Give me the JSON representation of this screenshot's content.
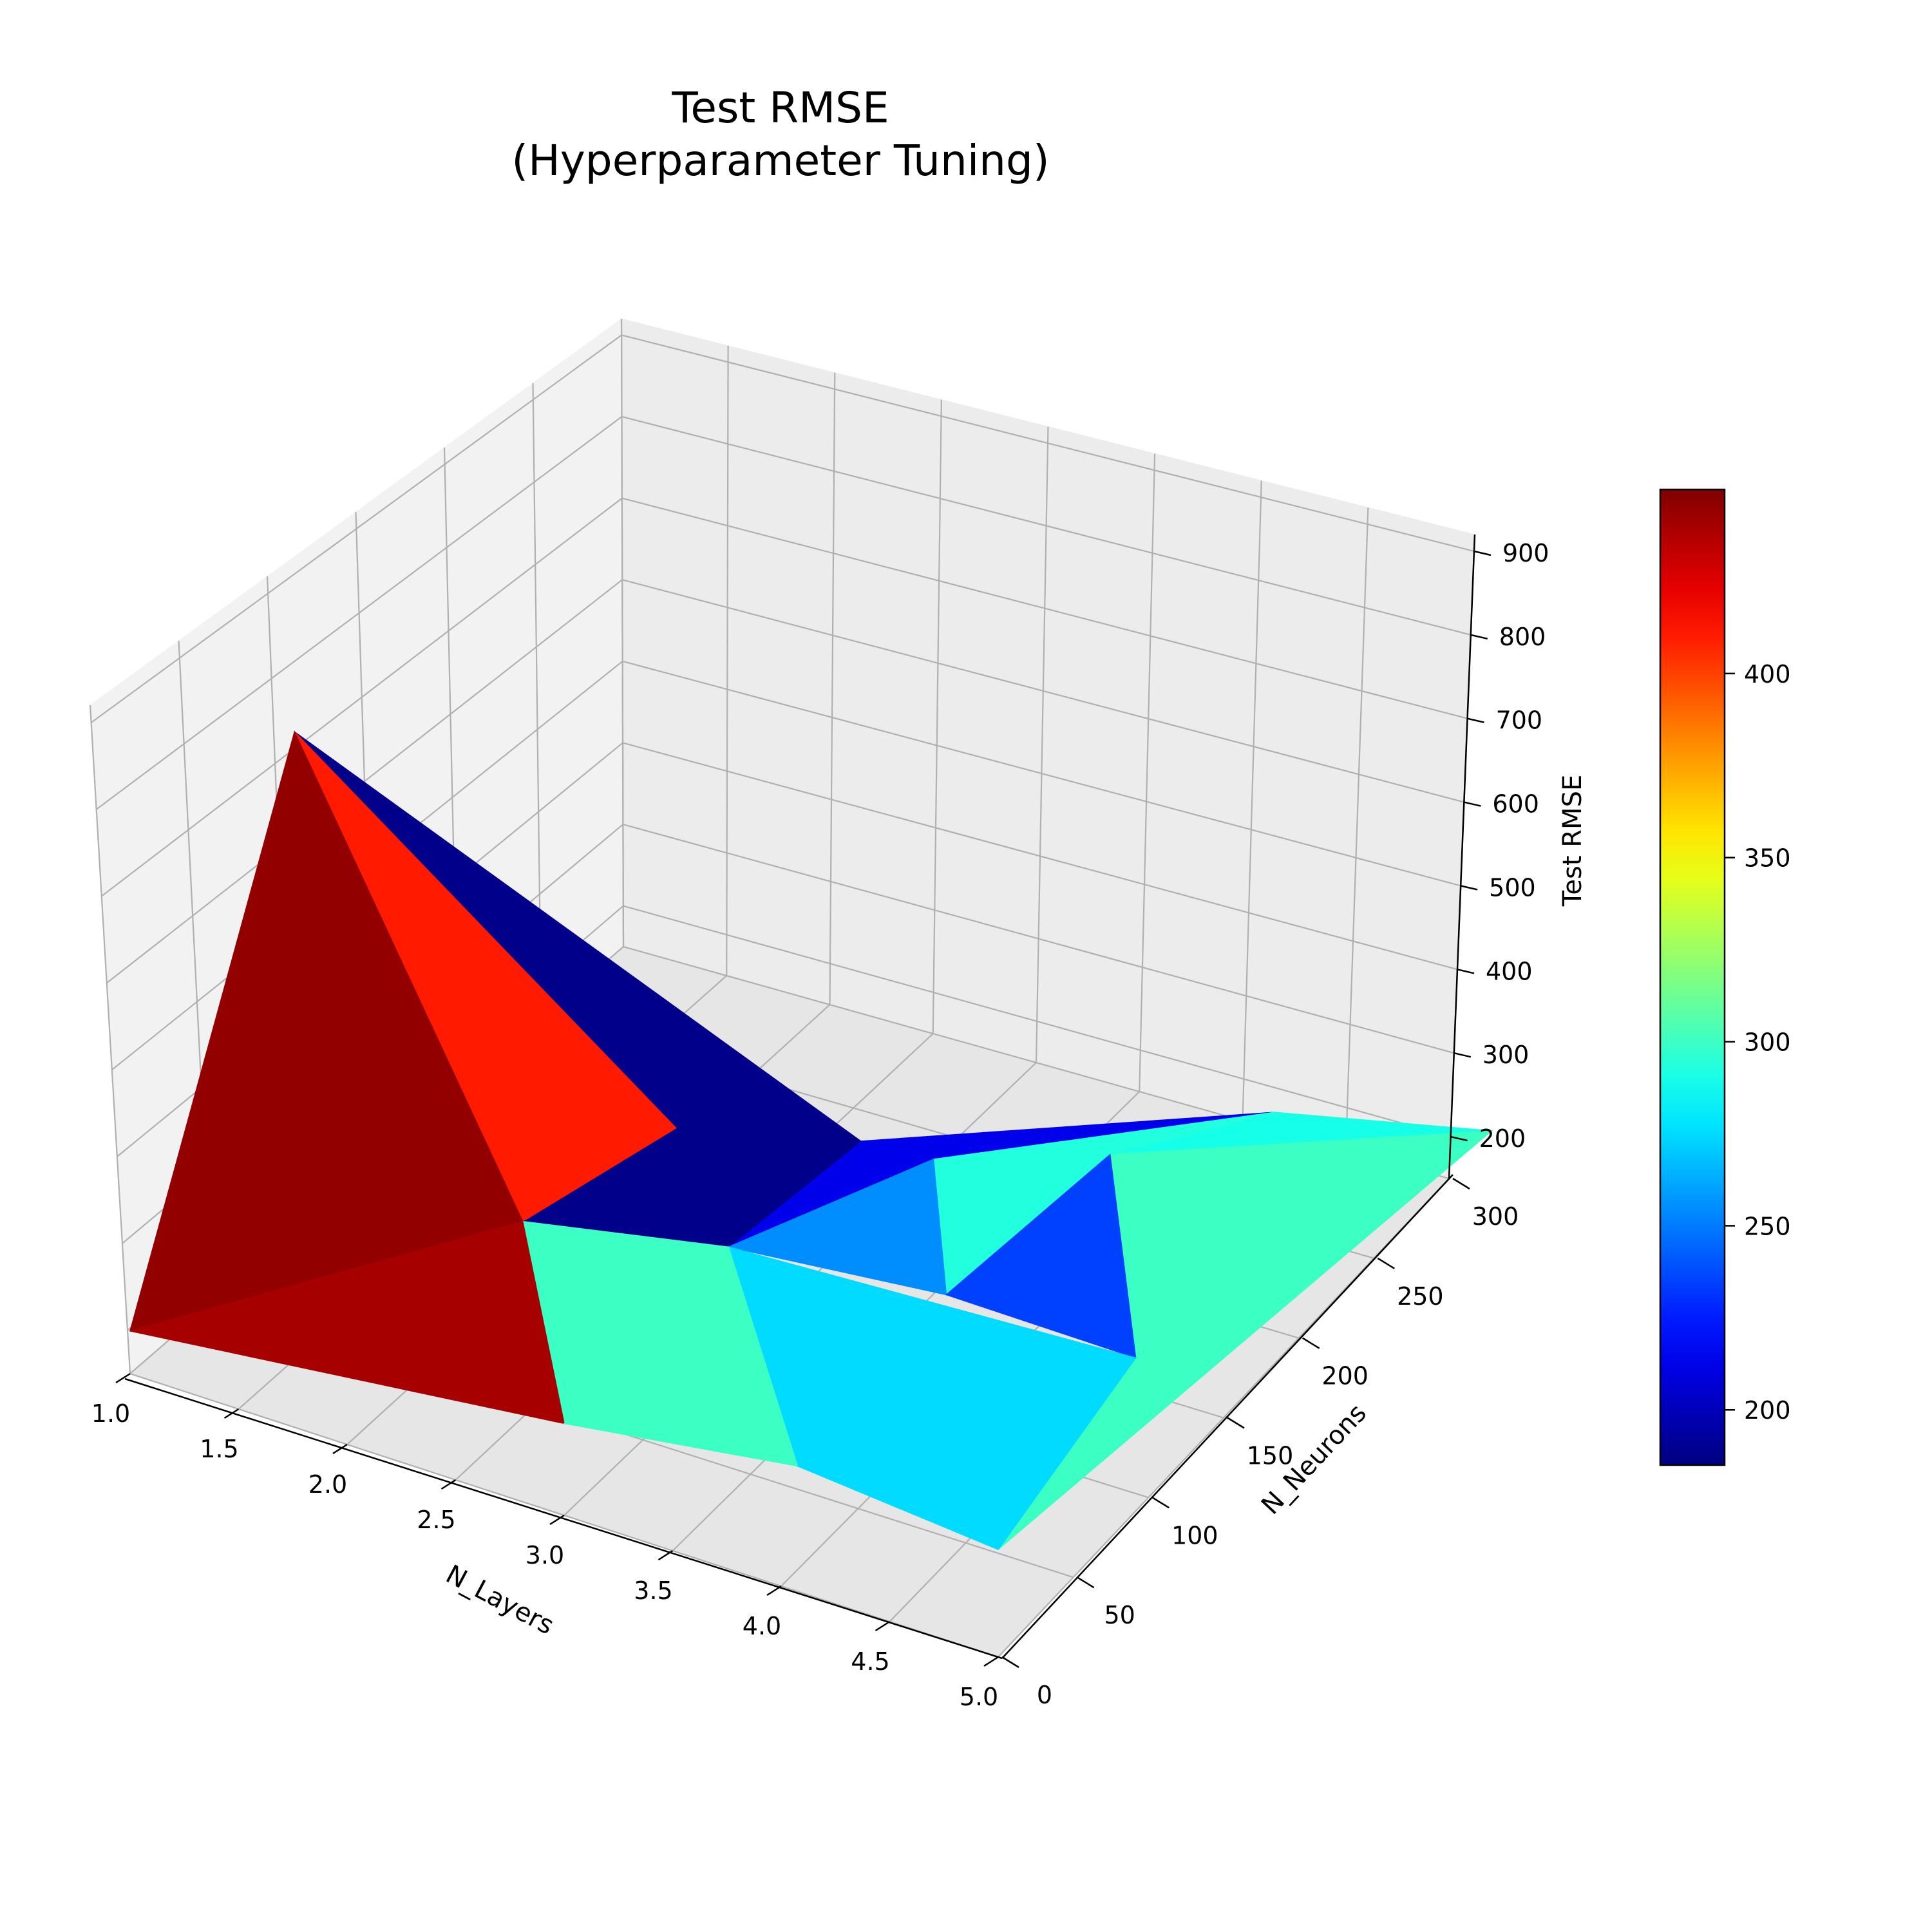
{
  "chart_data": {
    "type": "surface3d",
    "title": [
      "Test RMSE",
      "(Hyperparameter Tuning)"
    ],
    "xlabel": "N_Layers",
    "ylabel": "N_Neurons",
    "zlabel": "Test RMSE",
    "x_ticks": [
      "1.0",
      "1.5",
      "2.0",
      "2.5",
      "3.0",
      "3.5",
      "4.0",
      "4.5",
      "5.0"
    ],
    "y_ticks": [
      "0",
      "50",
      "100",
      "150",
      "200",
      "250",
      "300"
    ],
    "z_ticks": [
      "200",
      "300",
      "400",
      "500",
      "600",
      "700",
      "800",
      "900"
    ],
    "xlim": [
      1,
      5
    ],
    "ylim": [
      0,
      300
    ],
    "zlim": [
      150,
      920
    ],
    "colormap": "jet",
    "colorbar": {
      "range": [
        185,
        450
      ],
      "ticks": [
        "200",
        "250",
        "300",
        "350",
        "400"
      ],
      "tick_values": [
        200,
        250,
        300,
        350,
        400
      ]
    },
    "points": [
      {
        "x": 1,
        "y": 0,
        "z": 200
      },
      {
        "x": 1,
        "y": 100,
        "z": 760
      },
      {
        "x": 1.9,
        "y": 120,
        "z": 205
      },
      {
        "x": 2,
        "y": 200,
        "z": 190
      },
      {
        "x": 2.7,
        "y": 220,
        "z": 200
      },
      {
        "x": 3,
        "y": 0,
        "z": 255
      },
      {
        "x": 3,
        "y": 100,
        "z": 300
      },
      {
        "x": 3.3,
        "y": 185,
        "z": 290
      },
      {
        "x": 3.7,
        "y": 140,
        "z": 235
      },
      {
        "x": 4,
        "y": 10,
        "z": 270
      },
      {
        "x": 4,
        "y": 200,
        "z": 330
      },
      {
        "x": 4,
        "y": 300,
        "z": 210
      },
      {
        "x": 4.8,
        "y": 110,
        "z": 300
      },
      {
        "x": 5,
        "y": 0,
        "z": 270
      },
      {
        "x": 5,
        "y": 300,
        "z": 275
      }
    ],
    "triangles": [
      {
        "v": [
          0,
          1,
          2
        ],
        "value": 445
      },
      {
        "v": [
          0,
          2,
          5
        ],
        "value": 440
      },
      {
        "v": [
          1,
          2,
          3
        ],
        "value": 410
      },
      {
        "v": [
          1,
          3,
          4
        ],
        "value": 188
      },
      {
        "v": [
          2,
          3,
          4
        ],
        "value": 188
      },
      {
        "v": [
          2,
          4,
          6
        ],
        "value": 188
      },
      {
        "v": [
          2,
          5,
          6
        ],
        "value": 300
      },
      {
        "v": [
          4,
          6,
          7
        ],
        "value": 213
      },
      {
        "v": [
          4,
          7,
          11
        ],
        "value": 213
      },
      {
        "v": [
          5,
          6,
          9
        ],
        "value": 300
      },
      {
        "v": [
          6,
          9,
          12
        ],
        "value": 275
      },
      {
        "v": [
          6,
          7,
          8
        ],
        "value": 255
      },
      {
        "v": [
          7,
          10,
          11
        ],
        "value": 293
      },
      {
        "v": [
          7,
          8,
          10
        ],
        "value": 293
      },
      {
        "v": [
          8,
          10,
          12
        ],
        "value": 235
      },
      {
        "v": [
          9,
          12,
          13
        ],
        "value": 275
      },
      {
        "v": [
          10,
          12,
          14
        ],
        "value": 300
      },
      {
        "v": [
          10,
          11,
          14
        ],
        "value": 350
      },
      {
        "v": [
          11,
          14,
          10
        ],
        "value": 290
      },
      {
        "v": [
          12,
          13,
          14
        ],
        "value": 300
      }
    ]
  }
}
